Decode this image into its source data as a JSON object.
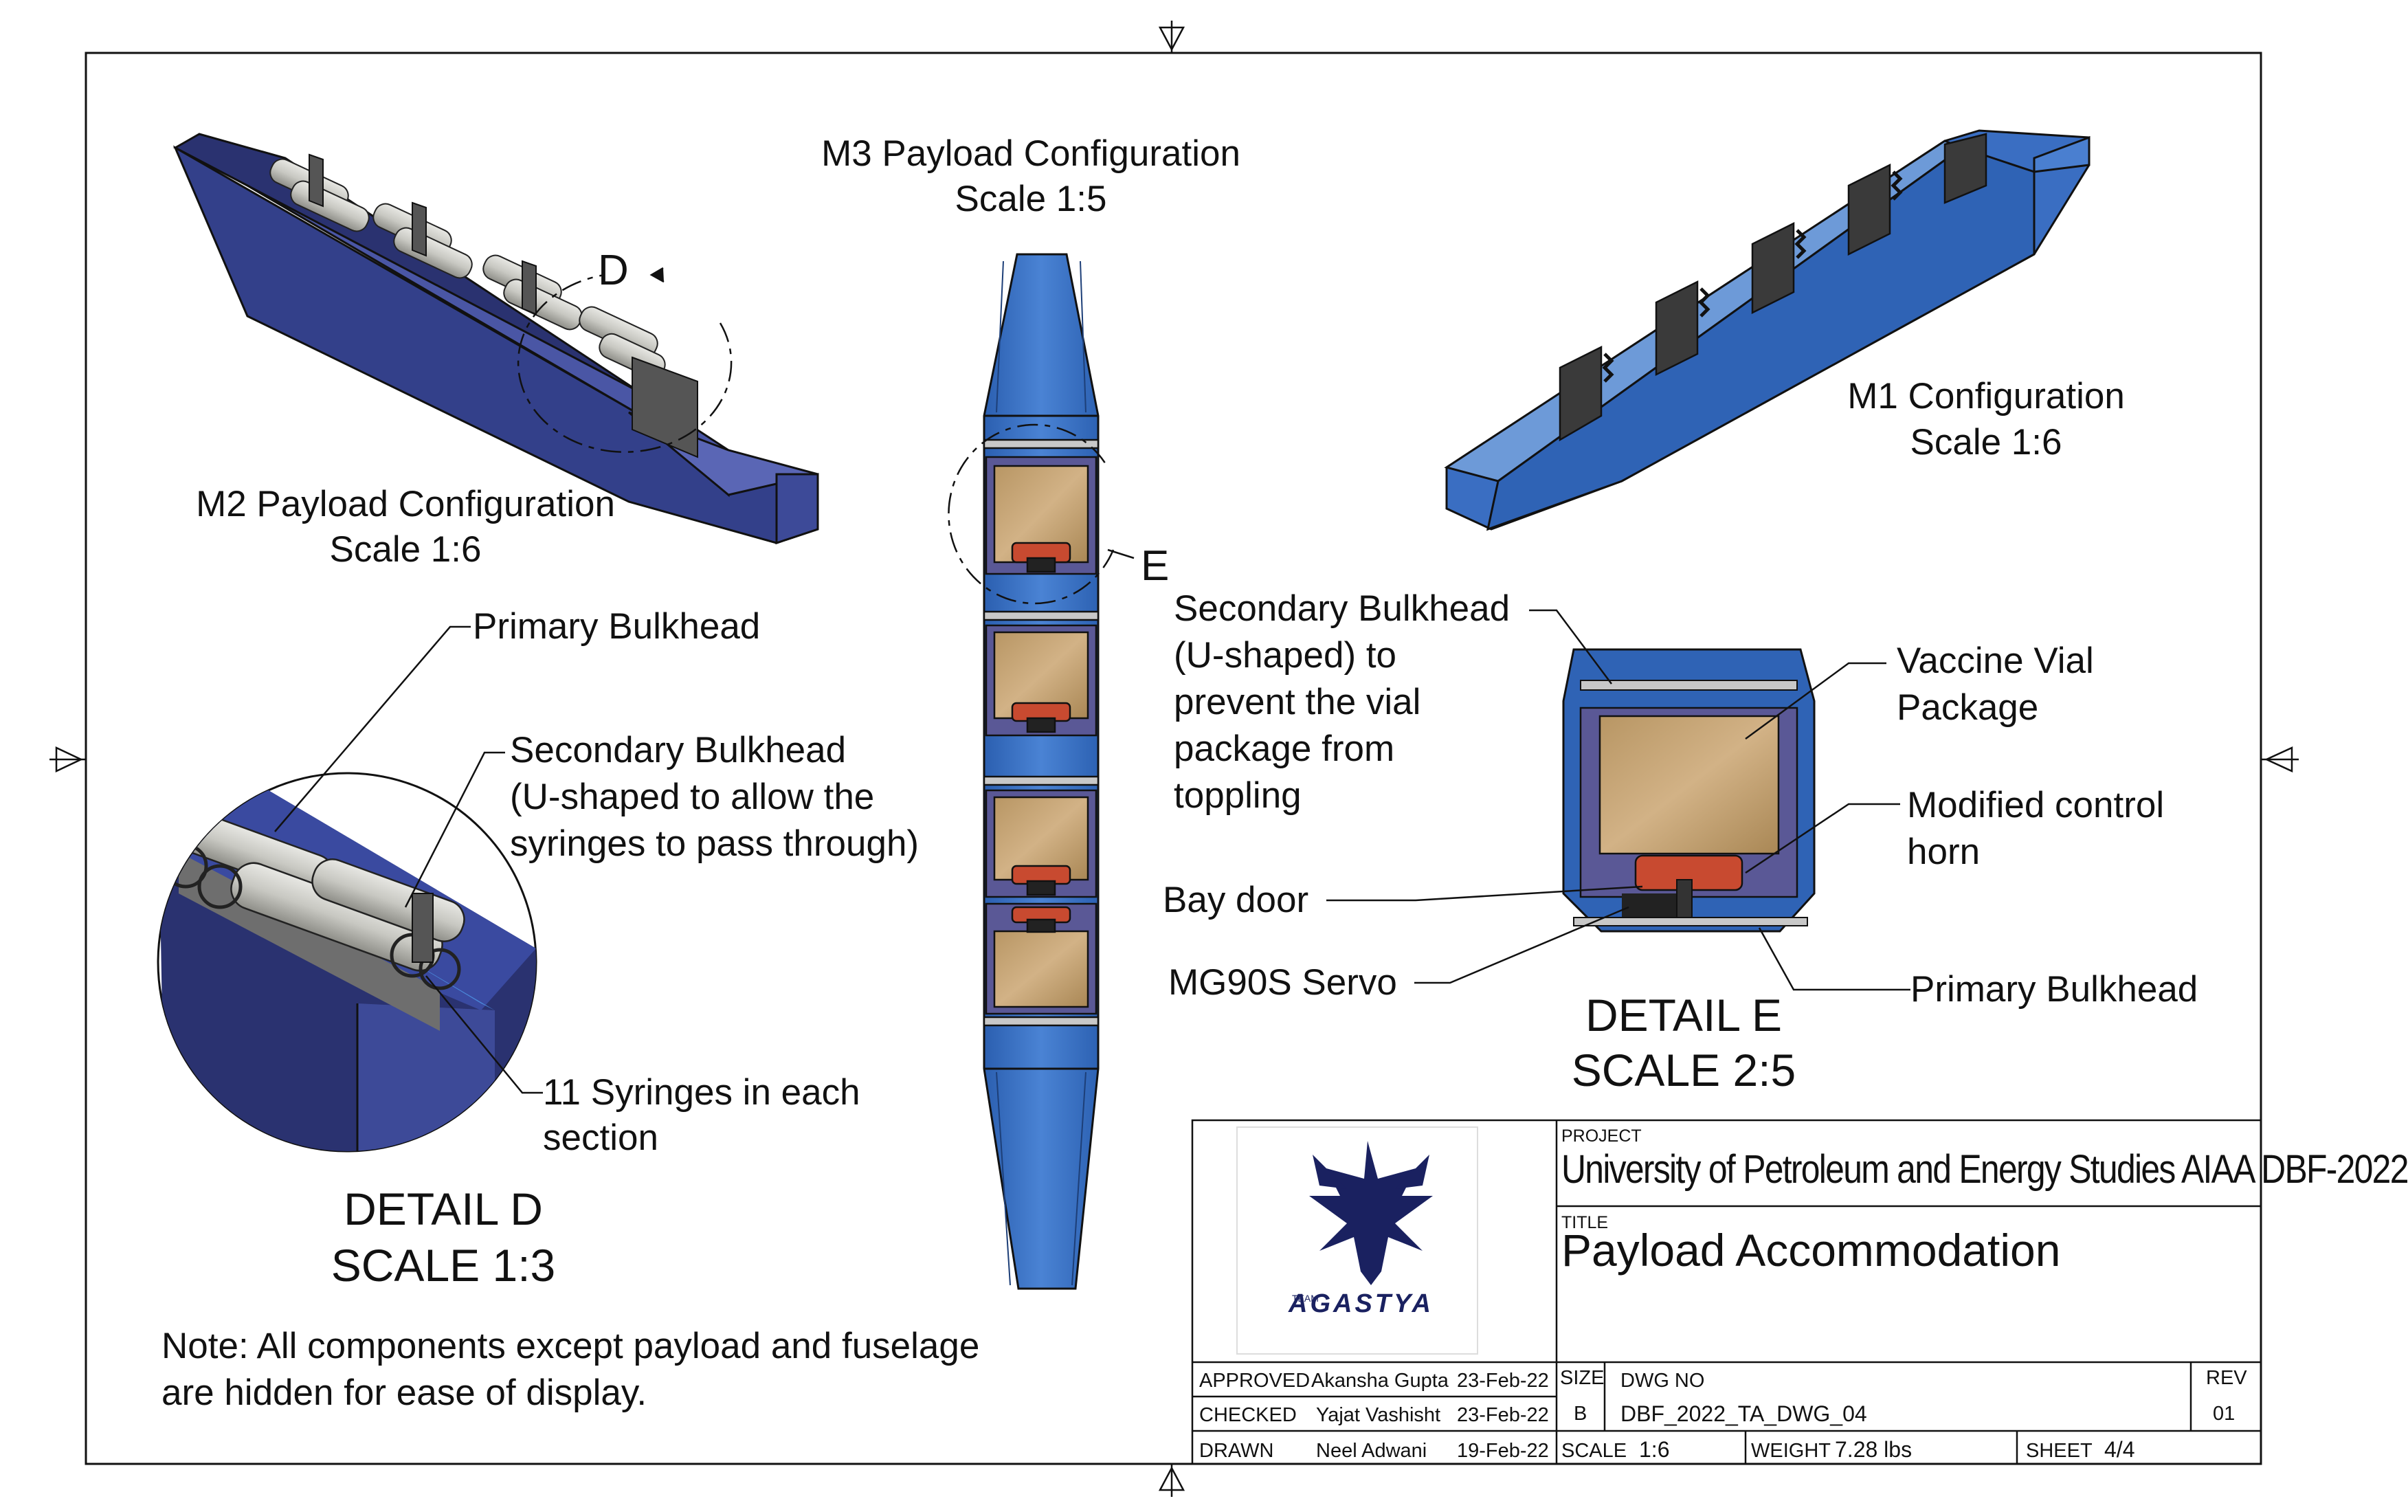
{
  "views": {
    "m3": {
      "title": "M3 Payload Configuration",
      "scale": "Scale 1:5"
    },
    "m2": {
      "title": "M2 Payload Configuration",
      "scale": "Scale 1:6"
    },
    "m1": {
      "title": "M1 Configuration",
      "scale": "Scale 1:6"
    },
    "detail_d_marker": "D",
    "detail_e_marker": "E"
  },
  "detail_d": {
    "title": "DETAIL D",
    "scale": "SCALE 1:3",
    "callouts": {
      "primary": "Primary Bulkhead",
      "secondary": [
        "Secondary Bulkhead",
        "(U-shaped to allow the",
        "syringes to pass through)"
      ],
      "syringes": [
        "11 Syringes in each",
        "section"
      ]
    }
  },
  "detail_e": {
    "title": "DETAIL E",
    "scale": "SCALE 2:5",
    "callouts": {
      "secondary": [
        "Secondary Bulkhead",
        "(U-shaped) to",
        "prevent the vial",
        "package from",
        "toppling"
      ],
      "vial": [
        "Vaccine Vial",
        "Package"
      ],
      "horn": [
        "Modified control",
        "horn"
      ],
      "bay_door": "Bay door",
      "servo": "MG90S Servo",
      "primary": "Primary Bulkhead"
    }
  },
  "note": [
    "Note: All components except payload and fuselage",
    "are hidden for ease of display."
  ],
  "title_block": {
    "logo_small_text": "TEAM",
    "logo_text": "AGASTYA",
    "project_label": "PROJECT",
    "project": "University of Petroleum and Energy Studies AIAA DBF-2022",
    "title_label": "TITLE",
    "title": "Payload Accommodation",
    "approved": {
      "label": "APPROVED",
      "name": "Akansha Gupta",
      "date": "23-Feb-22"
    },
    "checked": {
      "label": "CHECKED",
      "name": "Yajat Vashisht",
      "date": "23-Feb-22"
    },
    "drawn": {
      "label": "DRAWN",
      "name": "Neel Adwani",
      "date": "19-Feb-22"
    },
    "size_label": "SIZE",
    "size": "B",
    "dwg_no_label": "DWG NO",
    "dwg_no": "DBF_2022_TA_DWG_04",
    "rev_label": "REV",
    "rev": "01",
    "scale_label": "SCALE",
    "scale": "1:6",
    "weight_label": "WEIGHT",
    "weight": "7.28 lbs",
    "sheet_label": "SHEET",
    "sheet": "4/4"
  },
  "colors": {
    "fuselage_dark": "#2a3270",
    "fuselage_mid": "#3d4a98",
    "fuselage_blue": "#3a73c8",
    "payload_wood": "#c9a878",
    "control_horn": "#c84a30",
    "frame": "#111111"
  }
}
